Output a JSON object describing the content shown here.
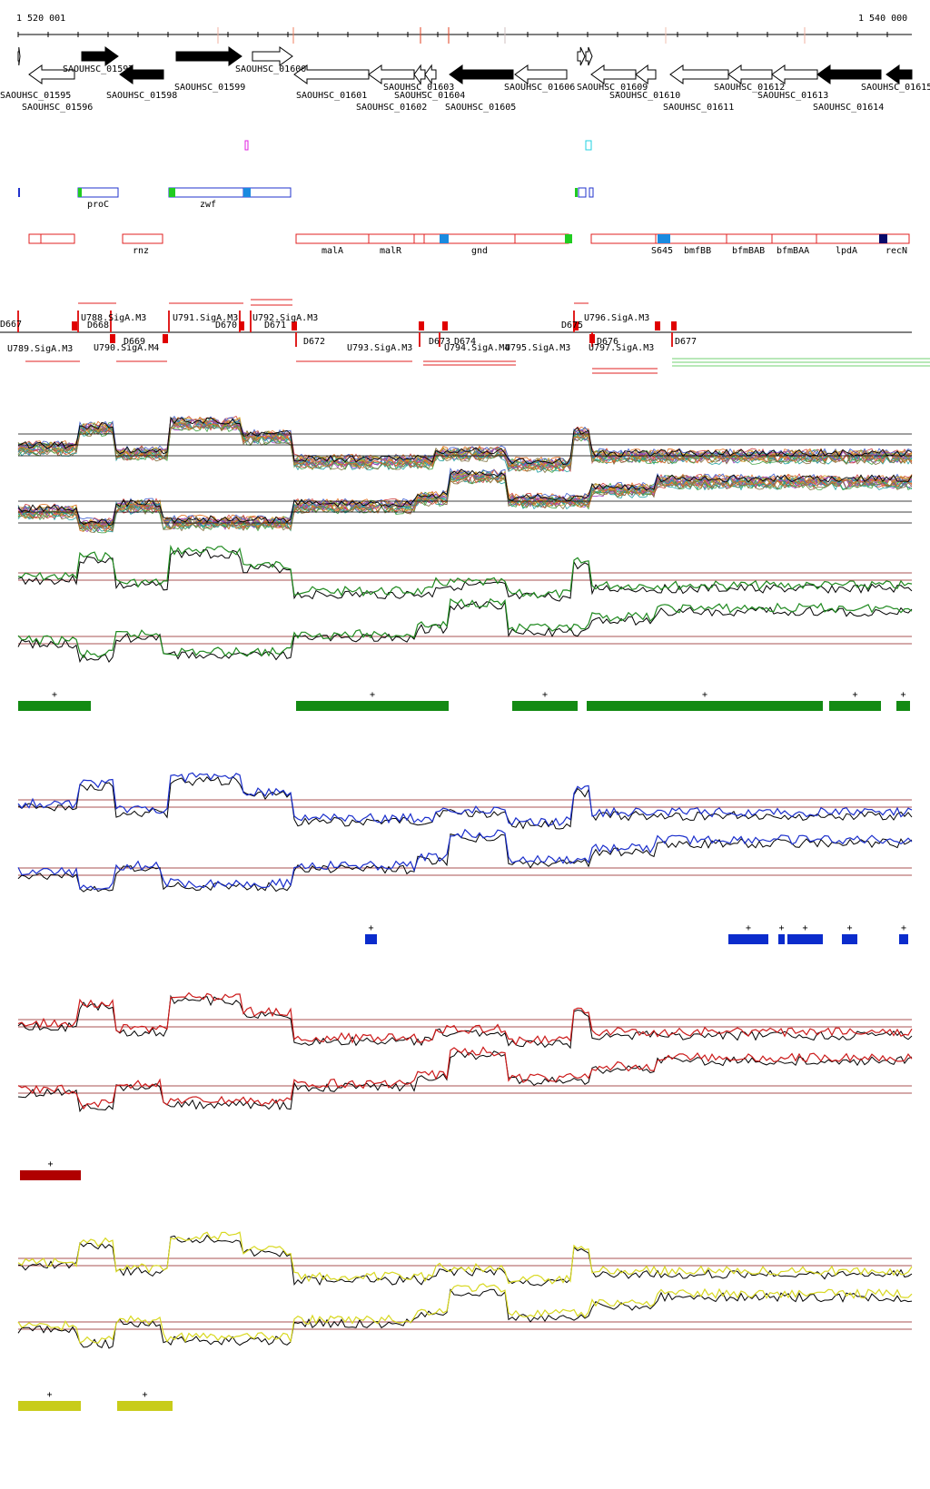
{
  "ruler": {
    "start_label": "1 520 001",
    "end_label": "1 540 000"
  },
  "genes": [
    {
      "label": "SAOUHSC_01595"
    },
    {
      "label": "SAOUHSC_01596"
    },
    {
      "label": "SAOUHSC_01597"
    },
    {
      "label": "SAOUHSC_01598"
    },
    {
      "label": "SAOUHSC_01599"
    },
    {
      "label": "SAOUHSC_01600"
    },
    {
      "label": "SAOUHSC_01601"
    },
    {
      "label": "SAOUHSC_01602"
    },
    {
      "label": "SAOUHSC_01603"
    },
    {
      "label": "SAOUHSC_01604"
    },
    {
      "label": "SAOUHSC_01605"
    },
    {
      "label": "SAOUHSC_01606"
    },
    {
      "label": "SAOUHSC_01609"
    },
    {
      "label": "SAOUHSC_01610"
    },
    {
      "label": "SAOUHSC_01611"
    },
    {
      "label": "SAOUHSC_01612"
    },
    {
      "label": "SAOUHSC_01613"
    },
    {
      "label": "SAOUHSC_01614"
    },
    {
      "label": "SAOUHSC_01615"
    }
  ],
  "blue_features": [
    {
      "label": "proC"
    },
    {
      "label": "zwf"
    }
  ],
  "red_features": [
    {
      "label": "rnz"
    },
    {
      "label": "malA"
    },
    {
      "label": "malR"
    },
    {
      "label": "gnd"
    },
    {
      "label": "S645"
    },
    {
      "label": "bmfBB"
    },
    {
      "label": "bfmBAB"
    },
    {
      "label": "bfmBAA"
    },
    {
      "label": "lpdA"
    },
    {
      "label": "recN"
    }
  ],
  "promoters": [
    {
      "label": "U788.SigA.M3"
    },
    {
      "label": "U789.SigA.M3"
    },
    {
      "label": "U790.SigA.M4"
    },
    {
      "label": "U791.SigA.M3"
    },
    {
      "label": "U792.SigA.M3"
    },
    {
      "label": "U793.SigA.M3"
    },
    {
      "label": "U794.SigA.M4"
    },
    {
      "label": "U795.SigA.M3"
    },
    {
      "label": "U796.SigA.M3"
    },
    {
      "label": "U797.SigA.M3"
    }
  ],
  "terminators": [
    {
      "label": "D667"
    },
    {
      "label": "D668"
    },
    {
      "label": "D669"
    },
    {
      "label": "D670"
    },
    {
      "label": "D671"
    },
    {
      "label": "D672"
    },
    {
      "label": "D673"
    },
    {
      "label": "D674"
    },
    {
      "label": "D675"
    },
    {
      "label": "D676"
    },
    {
      "label": "D677"
    }
  ],
  "segment_sign": "+",
  "colors": {
    "green": "#1f8a1f",
    "green_bar": "#138a13",
    "blue": "#1a2ecc",
    "blue_bar": "#0b2ccc",
    "red": "#cc1a1a",
    "red_bar": "#b00000",
    "yellow": "#d8d820",
    "yellow_bar": "#c8cc1a",
    "threshold": "#8b1a1a",
    "feature_red": "#e02020",
    "feature_blue": "#2233cc"
  }
}
